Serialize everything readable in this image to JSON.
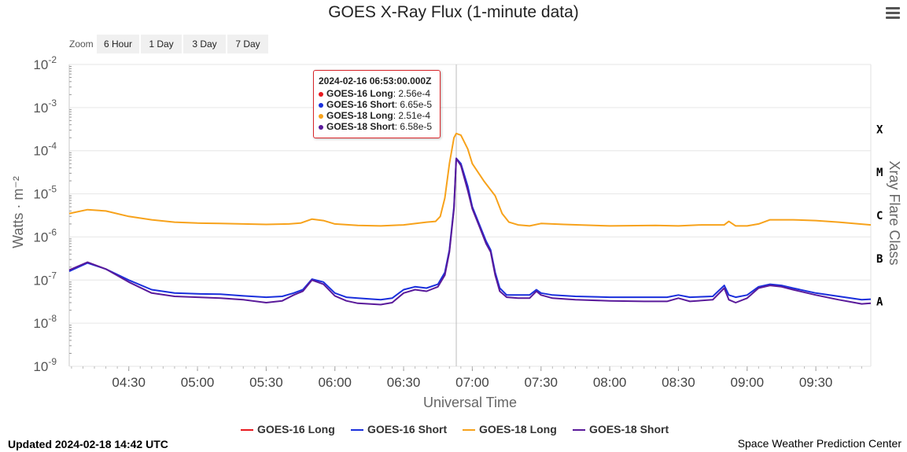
{
  "title": "GOES X-Ray Flux (1-minute data)",
  "zoom": {
    "label": "Zoom",
    "buttons": [
      "6 Hour",
      "1 Day",
      "3 Day",
      "7 Day"
    ]
  },
  "tooltip": {
    "header": "2024-02-16 06:53:00.000Z",
    "rows": [
      {
        "name": "GOES-16 Long",
        "value": "2.56e-4",
        "color": "#e8191f"
      },
      {
        "name": "GOES-16 Short",
        "value": "6.65e-5",
        "color": "#1a2fdc"
      },
      {
        "name": "GOES-18 Long",
        "value": "2.51e-4",
        "color": "#f7a21b"
      },
      {
        "name": "GOES-18 Short",
        "value": "6.58e-5",
        "color": "#5a1a9a"
      }
    ]
  },
  "footer": {
    "updated": "Updated 2024-02-18 14:42 UTC",
    "source": "Space Weather Prediction Center"
  },
  "chart_data": {
    "type": "line",
    "title": "GOES X-Ray Flux (1-minute data)",
    "xlabel": "Universal Time",
    "ylabel": "Watts · m⁻²",
    "y2label": "Xray Flare Class",
    "yscale": "log",
    "ylim": [
      1e-09,
      0.01
    ],
    "xlim": [
      "04:04",
      "09:54"
    ],
    "x_ticks": [
      "04:30",
      "05:00",
      "05:30",
      "06:00",
      "06:30",
      "07:00",
      "07:30",
      "08:00",
      "08:30",
      "09:00",
      "09:30"
    ],
    "y_ticks": [
      {
        "base": "10",
        "exp": "-9"
      },
      {
        "base": "10",
        "exp": "-8"
      },
      {
        "base": "10",
        "exp": "-7"
      },
      {
        "base": "10",
        "exp": "-6"
      },
      {
        "base": "10",
        "exp": "-5"
      },
      {
        "base": "10",
        "exp": "-4"
      },
      {
        "base": "10",
        "exp": "-3"
      },
      {
        "base": "10",
        "exp": "-2"
      }
    ],
    "flare_classes": [
      {
        "label": "X",
        "value": 0.0001
      },
      {
        "label": "M",
        "value": 1e-05
      },
      {
        "label": "C",
        "value": 1e-06
      },
      {
        "label": "B",
        "value": 1e-07
      },
      {
        "label": "A",
        "value": 1e-08
      }
    ],
    "crosshair_time": "06:53",
    "legend_position": "bottom-center",
    "series": [
      {
        "name": "GOES-16 Long",
        "color": "#e8191f",
        "times": [],
        "values": []
      },
      {
        "name": "GOES-16 Short",
        "color": "#1a2fdc",
        "times": [
          "04:04",
          "04:12",
          "04:20",
          "04:30",
          "04:40",
          "04:50",
          "05:00",
          "05:10",
          "05:20",
          "05:30",
          "05:37",
          "05:42",
          "05:46",
          "05:50",
          "05:55",
          "06:00",
          "06:05",
          "06:10",
          "06:20",
          "06:25",
          "06:30",
          "06:35",
          "06:40",
          "06:45",
          "06:48",
          "06:50",
          "06:52",
          "06:53",
          "06:55",
          "06:58",
          "07:00",
          "07:03",
          "07:06",
          "07:08",
          "07:10",
          "07:12",
          "07:15",
          "07:20",
          "07:25",
          "07:28",
          "07:30",
          "07:35",
          "07:45",
          "08:00",
          "08:15",
          "08:25",
          "08:30",
          "08:35",
          "08:45",
          "08:50",
          "08:52",
          "08:55",
          "09:00",
          "09:05",
          "09:10",
          "09:15",
          "09:20",
          "09:30",
          "09:40",
          "09:50",
          "09:54"
        ],
        "values": [
          1.6e-07,
          2.5e-07,
          1.8e-07,
          1e-07,
          6e-08,
          5e-08,
          4.8e-08,
          4.7e-08,
          4.3e-08,
          4e-08,
          4.2e-08,
          5e-08,
          6e-08,
          1.05e-07,
          9e-08,
          5e-08,
          4e-08,
          3.8e-08,
          3.5e-08,
          3.8e-08,
          6e-08,
          7e-08,
          6.5e-08,
          8e-08,
          1.5e-07,
          5e-07,
          5e-06,
          6.65e-05,
          5e-05,
          1.5e-05,
          5e-06,
          2e-06,
          8e-07,
          5e-07,
          1.5e-07,
          6.5e-08,
          4.5e-08,
          4.5e-08,
          4.5e-08,
          6e-08,
          5e-08,
          4.5e-08,
          4.2e-08,
          4e-08,
          4e-08,
          4e-08,
          4.5e-08,
          4e-08,
          4.2e-08,
          7.5e-08,
          4.5e-08,
          4e-08,
          4.5e-08,
          7e-08,
          8e-08,
          7.5e-08,
          6.5e-08,
          5e-08,
          4.2e-08,
          3.5e-08,
          3.6e-08
        ]
      },
      {
        "name": "GOES-18 Long",
        "color": "#f7a21b",
        "times": [
          "04:04",
          "04:12",
          "04:20",
          "04:30",
          "04:40",
          "04:50",
          "05:00",
          "05:10",
          "05:20",
          "05:30",
          "05:40",
          "05:45",
          "05:50",
          "05:55",
          "06:00",
          "06:10",
          "06:20",
          "06:30",
          "06:40",
          "06:44",
          "06:46",
          "06:48",
          "06:50",
          "06:52",
          "06:53",
          "06:55",
          "06:58",
          "07:00",
          "07:05",
          "07:10",
          "07:13",
          "07:16",
          "07:20",
          "07:25",
          "07:30",
          "07:40",
          "08:00",
          "08:20",
          "08:30",
          "08:40",
          "08:45",
          "08:50",
          "08:52",
          "08:55",
          "09:00",
          "09:05",
          "09:10",
          "09:20",
          "09:30",
          "09:40",
          "09:54"
        ],
        "values": [
          3.5e-06,
          4.3e-06,
          4e-06,
          3e-06,
          2.5e-06,
          2.2e-06,
          2.1e-06,
          2.05e-06,
          2e-06,
          1.95e-06,
          2e-06,
          2.1e-06,
          2.6e-06,
          2.4e-06,
          2e-06,
          1.85e-06,
          1.8e-06,
          1.9e-06,
          2.2e-06,
          2.3e-06,
          3e-06,
          8e-06,
          5e-05,
          0.0002,
          0.000251,
          0.00023,
          0.00011,
          5e-05,
          2e-05,
          9e-06,
          3.5e-06,
          2.2e-06,
          1.9e-06,
          1.8e-06,
          2.05e-06,
          1.95e-06,
          1.8e-06,
          1.85e-06,
          1.8e-06,
          1.9e-06,
          1.9e-06,
          1.9e-06,
          2.3e-06,
          1.8e-06,
          1.8e-06,
          2e-06,
          2.5e-06,
          2.5e-06,
          2.4e-06,
          2.2e-06,
          1.9e-06
        ]
      },
      {
        "name": "GOES-18 Short",
        "color": "#5a1a9a",
        "times": [
          "04:04",
          "04:12",
          "04:20",
          "04:30",
          "04:40",
          "04:50",
          "05:00",
          "05:10",
          "05:20",
          "05:30",
          "05:37",
          "05:42",
          "05:46",
          "05:50",
          "05:55",
          "06:00",
          "06:05",
          "06:10",
          "06:20",
          "06:25",
          "06:30",
          "06:35",
          "06:40",
          "06:45",
          "06:48",
          "06:50",
          "06:52",
          "06:53",
          "06:55",
          "06:58",
          "07:00",
          "07:03",
          "07:06",
          "07:08",
          "07:10",
          "07:12",
          "07:15",
          "07:20",
          "07:25",
          "07:28",
          "07:30",
          "07:35",
          "07:45",
          "08:00",
          "08:15",
          "08:25",
          "08:30",
          "08:35",
          "08:45",
          "08:50",
          "08:52",
          "08:55",
          "09:00",
          "09:05",
          "09:10",
          "09:15",
          "09:20",
          "09:30",
          "09:40",
          "09:50",
          "09:54"
        ],
        "values": [
          1.7e-07,
          2.6e-07,
          1.8e-07,
          9e-08,
          5e-08,
          4.2e-08,
          4e-08,
          3.8e-08,
          3.5e-08,
          3e-08,
          3.3e-08,
          4.5e-08,
          5.5e-08,
          1e-07,
          8e-08,
          4.3e-08,
          3.3e-08,
          2.9e-08,
          2.7e-08,
          3e-08,
          5e-08,
          6e-08,
          5.5e-08,
          7e-08,
          1.3e-07,
          4.5e-07,
          4.5e-06,
          6.58e-05,
          4.5e-05,
          1.2e-05,
          4.5e-06,
          1.8e-06,
          7e-07,
          4.5e-07,
          1.3e-07,
          5.5e-08,
          4e-08,
          3.8e-08,
          3.8e-08,
          5.5e-08,
          4.5e-08,
          3.8e-08,
          3.5e-08,
          3.3e-08,
          3.2e-08,
          3.2e-08,
          3.8e-08,
          3.2e-08,
          3.5e-08,
          6.5e-08,
          3.5e-08,
          3e-08,
          3.8e-08,
          6.5e-08,
          7.5e-08,
          7e-08,
          6e-08,
          4.5e-08,
          3.5e-08,
          2.8e-08,
          2.9e-08
        ]
      }
    ]
  }
}
